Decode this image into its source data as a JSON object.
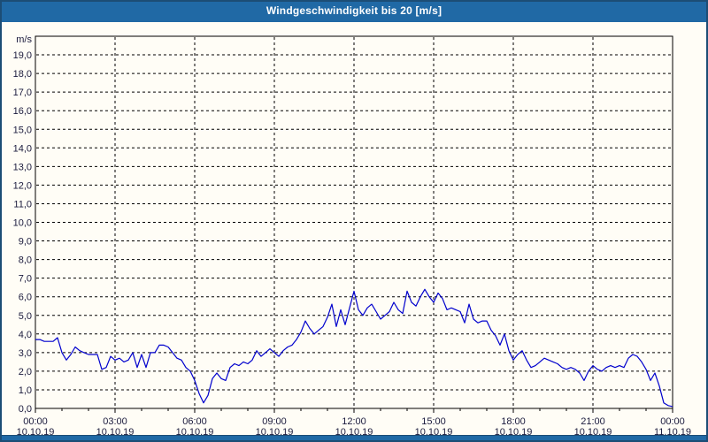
{
  "window": {
    "title": "Windgeschwindigkeit bis 20 [m/s]"
  },
  "colors": {
    "titlebar_blue": "#2069a5",
    "frame_navy": "#1c4d75",
    "line_blue": "#0000cd",
    "grid_black": "#000000",
    "label_color": "#1a1a3c",
    "background": "#fffdf6"
  },
  "chart_data": {
    "type": "line",
    "title": "Windgeschwindigkeit bis 20 [m/s]",
    "ylabel": "m/s",
    "y_unit_label": "m/s",
    "ylim": [
      0,
      20
    ],
    "xlim_hours": [
      0,
      24
    ],
    "grid": "dashed",
    "legend_position": "none",
    "y_tick_step": 1,
    "y_tick_labels": [
      "0,0",
      "1,0",
      "2,0",
      "3,0",
      "4,0",
      "5,0",
      "6,0",
      "7,0",
      "8,0",
      "9,0",
      "10,0",
      "11,0",
      "12,0",
      "13,0",
      "14,0",
      "15,0",
      "16,0",
      "17,0",
      "18,0",
      "19,0"
    ],
    "x_ticks": [
      {
        "hour": 0,
        "time": "00:00",
        "date": "10.10.19"
      },
      {
        "hour": 3,
        "time": "03:00",
        "date": "10.10.19"
      },
      {
        "hour": 6,
        "time": "06:00",
        "date": "10.10.19"
      },
      {
        "hour": 9,
        "time": "09:00",
        "date": "10.10.19"
      },
      {
        "hour": 12,
        "time": "12:00",
        "date": "10.10.19"
      },
      {
        "hour": 15,
        "time": "15:00",
        "date": "10.10.19"
      },
      {
        "hour": 18,
        "time": "18:00",
        "date": "10.10.19"
      },
      {
        "hour": 21,
        "time": "21:00",
        "date": "10.10.19"
      },
      {
        "hour": 24,
        "time": "00:00",
        "date": "11.10.19"
      }
    ],
    "minor_x_tick_every_hours": 1,
    "series": [
      {
        "name": "Windgeschwindigkeit",
        "unit": "m/s",
        "color": "#0000cd",
        "sample_interval_minutes": 10,
        "values": [
          3.7,
          3.7,
          3.6,
          3.6,
          3.6,
          3.8,
          3.0,
          2.6,
          2.9,
          3.3,
          3.1,
          3.0,
          2.9,
          2.9,
          2.9,
          2.1,
          2.2,
          2.8,
          2.6,
          2.7,
          2.5,
          2.6,
          3.0,
          2.2,
          2.9,
          2.2,
          3.0,
          3.0,
          3.4,
          3.4,
          3.3,
          3.0,
          2.7,
          2.6,
          2.2,
          2.0,
          1.5,
          0.8,
          0.3,
          0.7,
          1.6,
          1.9,
          1.6,
          1.5,
          2.2,
          2.4,
          2.3,
          2.5,
          2.4,
          2.6,
          3.1,
          2.8,
          3.0,
          3.2,
          3.0,
          2.8,
          3.1,
          3.3,
          3.4,
          3.7,
          4.1,
          4.7,
          4.3,
          4.0,
          4.2,
          4.4,
          4.9,
          5.6,
          4.4,
          5.3,
          4.5,
          5.4,
          6.3,
          5.3,
          5.0,
          5.4,
          5.6,
          5.2,
          4.8,
          5.0,
          5.2,
          5.7,
          5.3,
          5.1,
          6.3,
          5.7,
          5.5,
          6.0,
          6.4,
          6.0,
          5.7,
          6.2,
          5.9,
          5.3,
          5.4,
          5.3,
          5.2,
          4.6,
          5.6,
          4.8,
          4.6,
          4.7,
          4.7,
          4.2,
          3.9,
          3.4,
          4.0,
          3.1,
          2.6,
          2.9,
          3.1,
          2.6,
          2.2,
          2.3,
          2.5,
          2.7,
          2.6,
          2.5,
          2.4,
          2.2,
          2.1,
          2.2,
          2.1,
          1.9,
          1.5,
          2.0,
          2.3,
          2.1,
          2.0,
          2.2,
          2.3,
          2.2,
          2.3,
          2.2,
          2.7,
          2.9,
          2.8,
          2.5,
          2.1,
          1.5,
          1.9,
          1.2,
          0.3,
          0.15,
          0.1
        ]
      }
    ]
  }
}
